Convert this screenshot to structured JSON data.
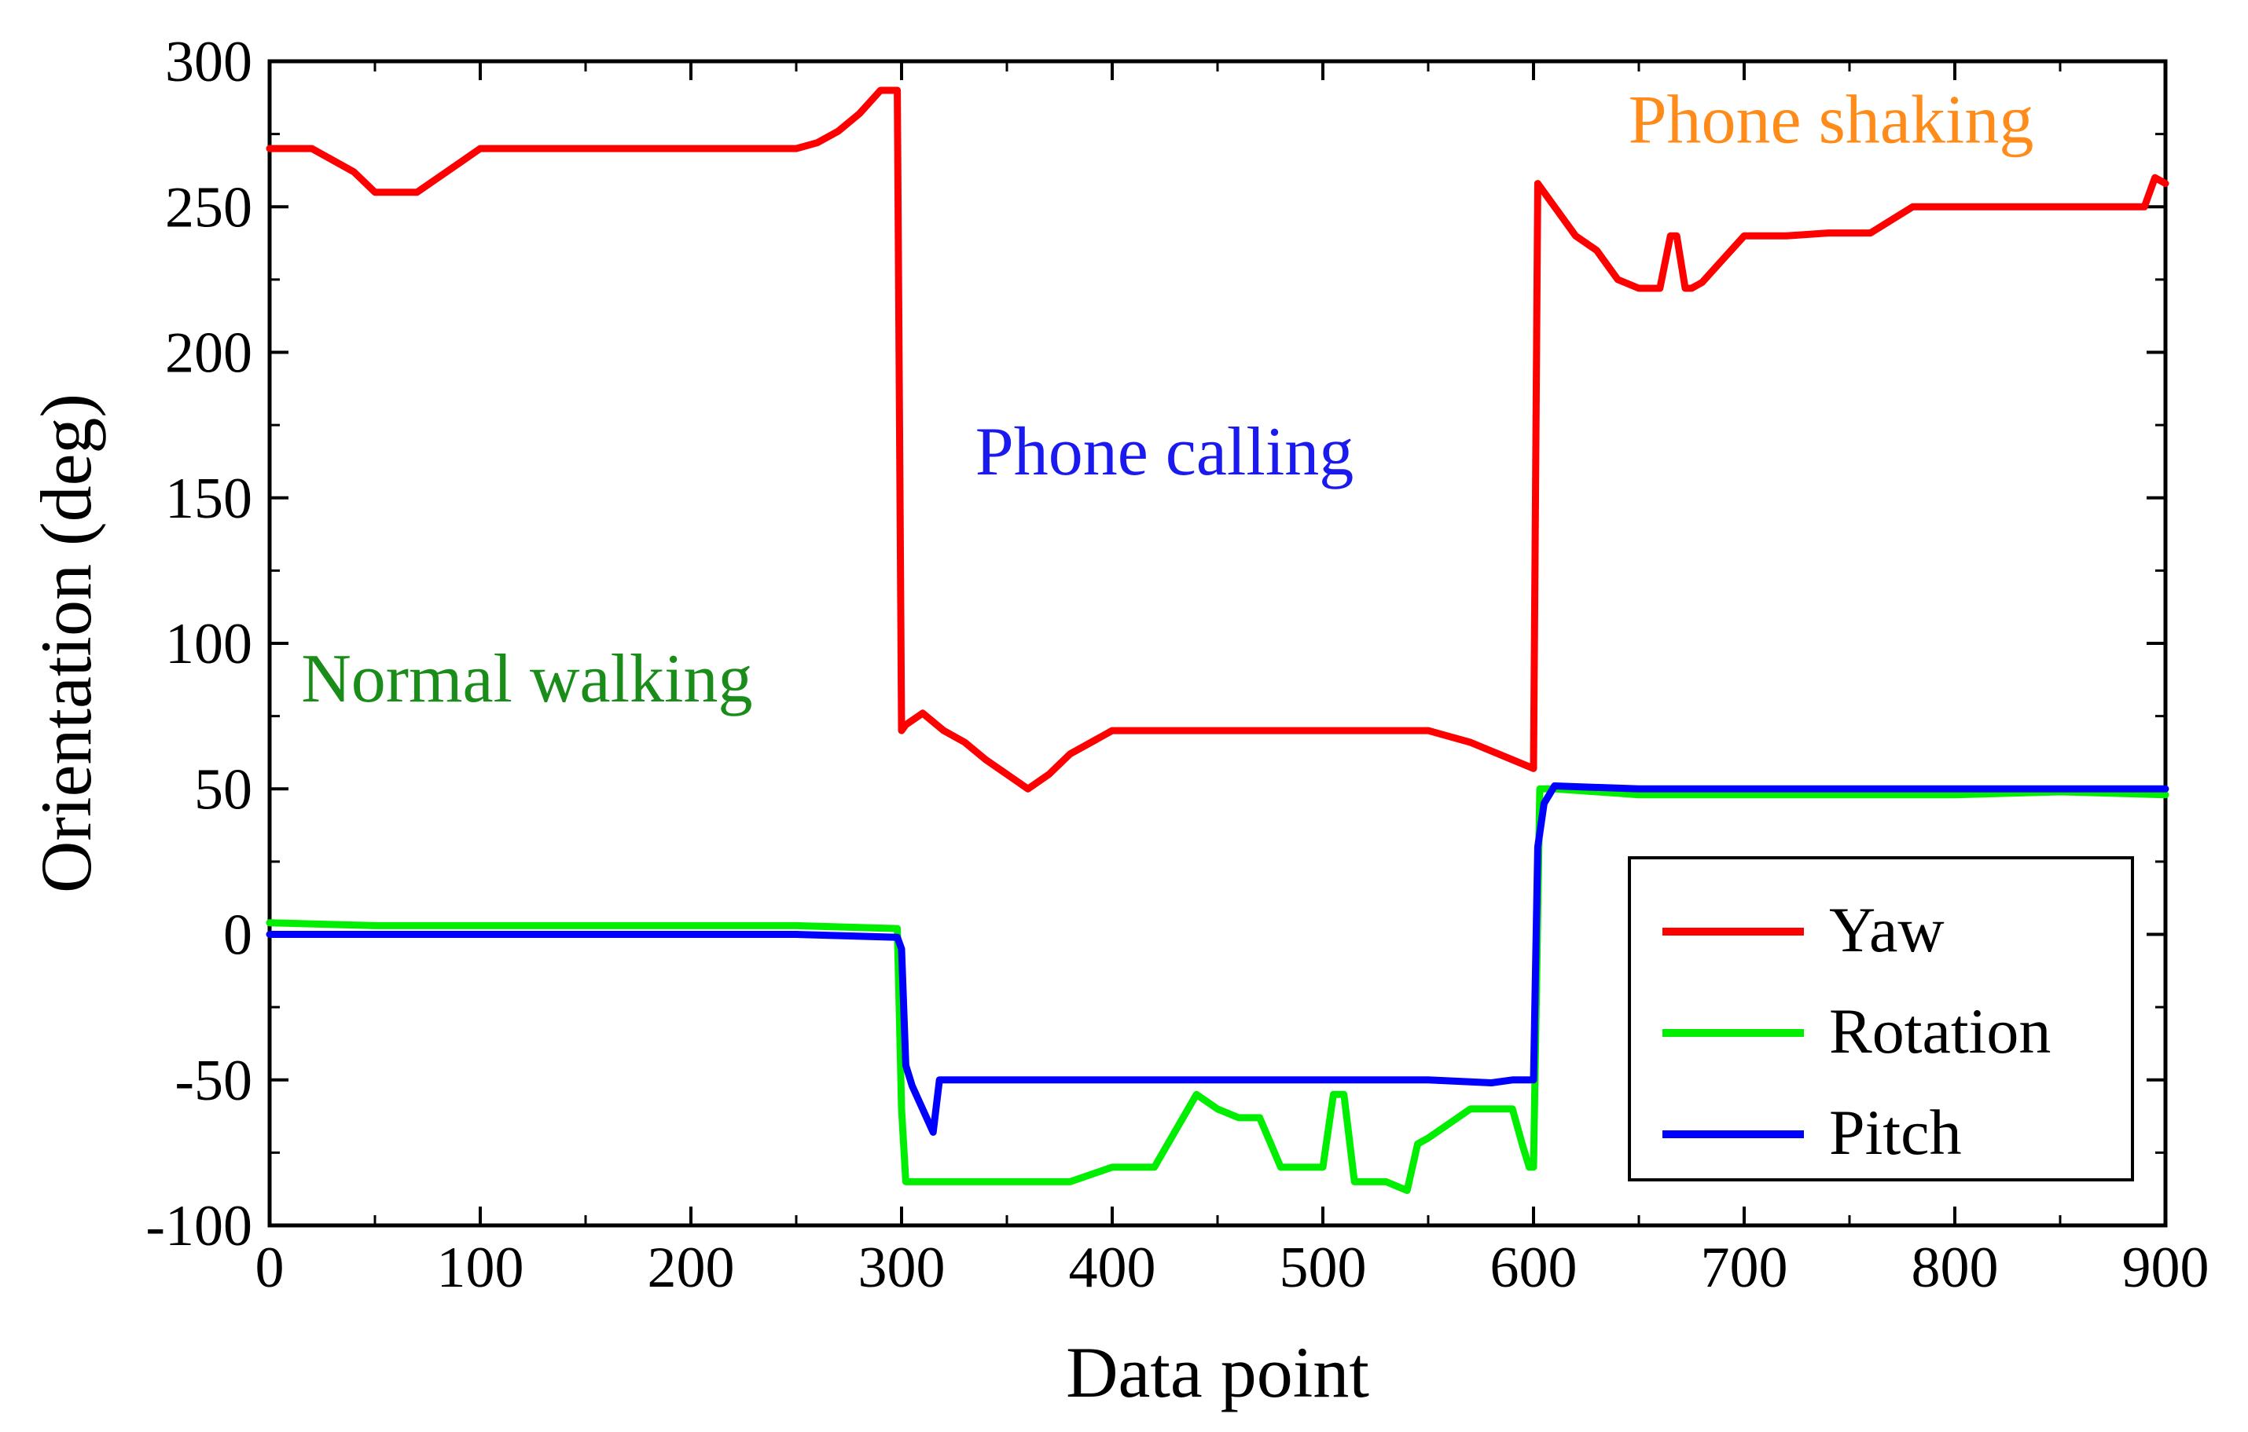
{
  "chart_data": {
    "type": "line",
    "xlabel": "Data point",
    "ylabel": "Orientation (deg)",
    "xlim": [
      0,
      900
    ],
    "ylim": [
      -100,
      300
    ],
    "xticks": [
      "0",
      "100",
      "200",
      "300",
      "400",
      "500",
      "600",
      "700",
      "800",
      "900"
    ],
    "yticks": [
      "300",
      "250",
      "200",
      "150",
      "100",
      "50",
      "0",
      "-50",
      "-100"
    ],
    "xtick_values": [
      0,
      100,
      200,
      300,
      400,
      500,
      600,
      700,
      800,
      900
    ],
    "ytick_values": [
      300,
      250,
      200,
      150,
      100,
      50,
      0,
      -50,
      -100
    ],
    "grid": false,
    "legend_position": "bottom-right",
    "annotations": [
      {
        "text": "Normal walking",
        "x": 15,
        "y": 80,
        "color": "#1a8c1a"
      },
      {
        "text": "Phone calling",
        "x": 335,
        "y": 158,
        "color": "#1a1aee"
      },
      {
        "text": "Phone shaking",
        "x": 645,
        "y": 272,
        "color": "#ff8c1a"
      }
    ],
    "series": [
      {
        "name": "Yaw",
        "color": "#ff0000",
        "x": [
          0,
          20,
          40,
          50,
          60,
          70,
          80,
          90,
          100,
          150,
          200,
          250,
          260,
          270,
          280,
          290,
          298,
          300,
          302,
          310,
          320,
          330,
          340,
          350,
          360,
          370,
          380,
          390,
          400,
          450,
          500,
          550,
          560,
          570,
          580,
          590,
          600,
          602,
          610,
          620,
          630,
          640,
          650,
          660,
          665,
          668,
          672,
          675,
          680,
          690,
          700,
          720,
          740,
          760,
          780,
          800,
          820,
          840,
          860,
          880,
          890,
          895,
          900
        ],
        "y": [
          270,
          270,
          262,
          255,
          255,
          255,
          260,
          265,
          270,
          270,
          270,
          270,
          272,
          276,
          282,
          290,
          290,
          70,
          72,
          76,
          70,
          66,
          60,
          55,
          50,
          55,
          62,
          66,
          70,
          70,
          70,
          70,
          68,
          66,
          63,
          60,
          57,
          258,
          250,
          240,
          235,
          225,
          222,
          222,
          240,
          240,
          222,
          222,
          224,
          232,
          240,
          240,
          241,
          241,
          250,
          250,
          250,
          250,
          250,
          250,
          250,
          260,
          258
        ]
      },
      {
        "name": "Rotation",
        "color": "#00ee00",
        "x": [
          0,
          50,
          100,
          150,
          200,
          250,
          298,
          300,
          302,
          320,
          340,
          360,
          380,
          400,
          420,
          440,
          450,
          460,
          470,
          480,
          490,
          500,
          505,
          510,
          515,
          520,
          530,
          540,
          545,
          550,
          560,
          570,
          580,
          590,
          595,
          598,
          600,
          603,
          610,
          650,
          700,
          750,
          800,
          850,
          900
        ],
        "y": [
          4,
          3,
          3,
          3,
          3,
          3,
          2,
          -60,
          -85,
          -85,
          -85,
          -85,
          -85,
          -80,
          -80,
          -55,
          -60,
          -63,
          -63,
          -80,
          -80,
          -80,
          -55,
          -55,
          -85,
          -85,
          -85,
          -88,
          -72,
          -70,
          -65,
          -60,
          -60,
          -60,
          -73,
          -80,
          -80,
          50,
          50,
          48,
          48,
          48,
          48,
          49,
          48
        ]
      },
      {
        "name": "Pitch",
        "color": "#0000ff",
        "x": [
          0,
          50,
          100,
          150,
          200,
          250,
          298,
          300,
          302,
          305,
          310,
          315,
          318,
          330,
          400,
          450,
          500,
          550,
          580,
          590,
          600,
          602,
          605,
          610,
          650,
          700,
          750,
          800,
          850,
          900
        ],
        "y": [
          0,
          0,
          0,
          0,
          0,
          0,
          -1,
          -5,
          -45,
          -52,
          -60,
          -68,
          -50,
          -50,
          -50,
          -50,
          -50,
          -50,
          -51,
          -50,
          -50,
          30,
          45,
          51,
          50,
          50,
          50,
          50,
          50,
          50
        ]
      }
    ]
  }
}
